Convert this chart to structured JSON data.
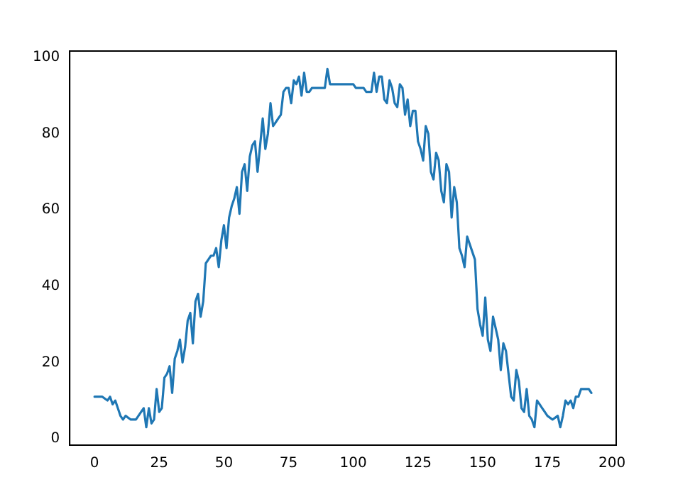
{
  "chart_data": {
    "type": "line",
    "x": [
      0,
      3,
      5,
      6,
      7,
      8,
      9,
      10,
      11,
      12,
      14,
      16,
      18,
      19,
      20,
      21,
      22,
      23,
      24,
      25,
      26,
      27,
      28,
      29,
      30,
      31,
      32,
      33,
      34,
      35,
      36,
      37,
      38,
      39,
      40,
      41,
      42,
      43,
      44,
      45,
      46,
      47,
      48,
      49,
      50,
      51,
      52,
      53,
      54,
      55,
      56,
      57,
      58,
      59,
      60,
      61,
      62,
      63,
      64,
      65,
      66,
      67,
      68,
      69,
      70,
      71,
      72,
      73,
      74,
      75,
      76,
      77,
      78,
      79,
      80,
      81,
      82,
      83,
      84,
      85,
      87,
      89,
      90,
      91,
      100,
      101,
      104,
      105,
      107,
      108,
      109,
      110,
      111,
      112,
      113,
      114,
      115,
      116,
      117,
      118,
      119,
      120,
      121,
      122,
      123,
      124,
      125,
      126,
      127,
      128,
      129,
      130,
      131,
      132,
      133,
      134,
      135,
      136,
      137,
      138,
      139,
      140,
      141,
      142,
      143,
      144,
      145,
      146,
      147,
      148,
      149,
      150,
      151,
      152,
      153,
      154,
      155,
      156,
      157,
      158,
      159,
      160,
      161,
      162,
      163,
      164,
      165,
      166,
      167,
      168,
      169,
      170,
      171,
      172,
      173,
      174,
      175,
      177,
      179,
      180,
      181,
      182,
      183,
      184,
      185,
      186,
      187,
      188,
      189,
      191,
      192
    ],
    "series": [
      {
        "color": "#1f77b4",
        "values": [
          11,
          11,
          10,
          11,
          9,
          10,
          8,
          6,
          5,
          6,
          5,
          5,
          7,
          8,
          3,
          8,
          4,
          5,
          13,
          7,
          8,
          16,
          17,
          19,
          12,
          21,
          23,
          26,
          20,
          24,
          31,
          33,
          25,
          36,
          38,
          32,
          36,
          46,
          47,
          48,
          48,
          50,
          45,
          52,
          56,
          50,
          58,
          61,
          63,
          66,
          59,
          70,
          72,
          65,
          74,
          77,
          78,
          70,
          77,
          84,
          76,
          80,
          88,
          82,
          83,
          84,
          85,
          91,
          92,
          92,
          88,
          94,
          93,
          95,
          90,
          96,
          91,
          91,
          92,
          92,
          92,
          92,
          97,
          93,
          93,
          92,
          92,
          91,
          91,
          96,
          91,
          95,
          95,
          89,
          88,
          94,
          92,
          88,
          87,
          93,
          92,
          85,
          89,
          82,
          86,
          86,
          78,
          76,
          73,
          82,
          80,
          70,
          68,
          75,
          73,
          65,
          62,
          72,
          70,
          58,
          66,
          62,
          50,
          48,
          45,
          53,
          51,
          49,
          47,
          34,
          30,
          27,
          37,
          26,
          23,
          32,
          29,
          26,
          18,
          25,
          23,
          17,
          11,
          10,
          18,
          15,
          8,
          7,
          13,
          6,
          5,
          3,
          10,
          9,
          8,
          7,
          6,
          5,
          6,
          3,
          6,
          10,
          9,
          10,
          8,
          11,
          11,
          13,
          13,
          13,
          12
        ]
      }
    ],
    "xlim": [
      -9.6,
      201.6
    ],
    "ylim": [
      -1.7,
      101.7
    ],
    "xticks": [
      0,
      25,
      50,
      75,
      100,
      125,
      150,
      175,
      200
    ],
    "yticks": [
      0,
      20,
      40,
      60,
      80,
      100
    ],
    "grid": false,
    "legend": false,
    "marker": "none",
    "line_style": "solid"
  }
}
